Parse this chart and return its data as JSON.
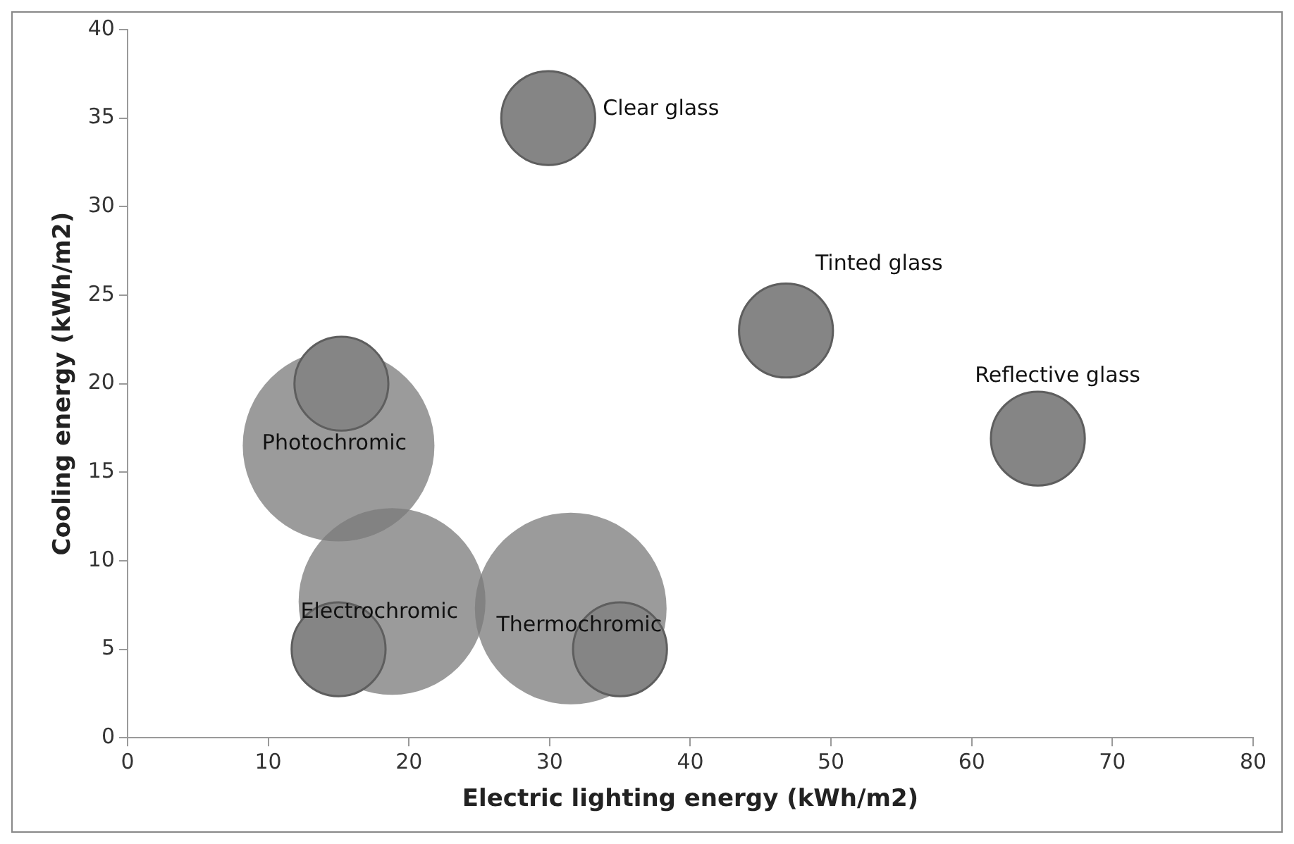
{
  "chart_data": {
    "type": "bubble",
    "xlabel": "Electric lighting energy (kWh/m2)",
    "ylabel": "Cooling energy (kWh/m2)",
    "xlim": [
      0,
      80
    ],
    "xticks": [
      0,
      10,
      20,
      30,
      40,
      50,
      60,
      70,
      80
    ],
    "ylim": [
      0,
      40
    ],
    "yticks": [
      0,
      5,
      10,
      15,
      20,
      25,
      30,
      35,
      40
    ],
    "grid": false,
    "legend": false,
    "series": [
      {
        "color": "#7a7a7a",
        "x": [
          15,
          18.8,
          31.5
        ],
        "values": [
          16.5,
          7.7,
          7.3
        ],
        "sizes": [
          1,
          0.95,
          1
        ]
      },
      {
        "color": "#858585",
        "x": [
          29.9,
          46.8,
          64.7,
          15.2,
          15,
          35
        ],
        "values": [
          35,
          23,
          16.9,
          20,
          5,
          5
        ],
        "sizes": [
          0.24,
          0.24,
          0.24,
          0.24,
          0.24,
          0.24
        ]
      }
    ],
    "annotations": [
      {
        "text": "Clear glass",
        "x": 29.9,
        "y": 35
      },
      {
        "text": "Tinted glass",
        "x": 46.8,
        "y": 23
      },
      {
        "text": "Reflective glass",
        "x": 64.7,
        "y": 16.9
      },
      {
        "text": "Photochromic",
        "x": 15,
        "y": 16.5
      },
      {
        "text": "Electrochromic",
        "x": 18.8,
        "y": 7.7
      },
      {
        "text": "Thermochromic",
        "x": 31.5,
        "y": 7.3
      }
    ]
  }
}
